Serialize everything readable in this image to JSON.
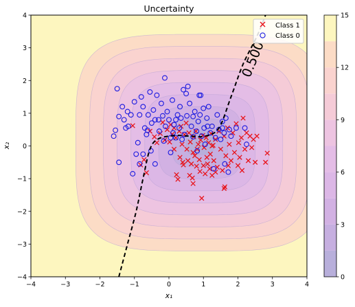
{
  "chart_data": {
    "type": "contour",
    "title": "Uncertainty",
    "xlabel": "x₁",
    "ylabel": "x₂",
    "xlim": [
      -4,
      4
    ],
    "ylim": [
      -4,
      4
    ],
    "xticks": [
      "−4",
      "−3",
      "−2",
      "−1",
      "0",
      "1",
      "2",
      "3",
      "4"
    ],
    "yticks": [
      "−4",
      "−3",
      "−2",
      "−1",
      "0",
      "1",
      "2",
      "3",
      "4"
    ],
    "contour_field": {
      "center": [
        0.9,
        0.1
      ],
      "levels": [
        0,
        1.5,
        3,
        4.5,
        6,
        7.5,
        9,
        10.5,
        12,
        13.5,
        15
      ],
      "colors": [
        "#b8afdb",
        "#c6afe0",
        "#d2b1e3",
        "#dcb7e6",
        "#e4bde6",
        "#edc4e1",
        "#f5cbd7",
        "#fad3cf",
        "#fcdcc6",
        "#fdf6bf"
      ]
    },
    "colorbar": {
      "ticks": [
        "0",
        "3",
        "6",
        "9",
        "12",
        "15"
      ],
      "range": [
        0,
        15
      ]
    },
    "decision_boundary": {
      "label": "0.500",
      "points": [
        [
          -1.45,
          -4.0
        ],
        [
          -1.2,
          -3.0
        ],
        [
          -0.95,
          -2.0
        ],
        [
          -0.75,
          -1.0
        ],
        [
          -0.55,
          -0.1
        ],
        [
          -0.3,
          0.22
        ],
        [
          0.2,
          0.32
        ],
        [
          0.6,
          0.3
        ],
        [
          1.05,
          0.3
        ],
        [
          1.45,
          0.55
        ],
        [
          1.8,
          1.5
        ],
        [
          2.15,
          2.5
        ],
        [
          2.55,
          3.35
        ],
        [
          2.8,
          4.0
        ]
      ]
    },
    "legend": {
      "position": "top-right",
      "entries": [
        "Class 1",
        "Class 0"
      ]
    },
    "series": [
      {
        "name": "Class 1",
        "marker": "x",
        "color": "#e8131a",
        "points": [
          [
            -1.05,
            0.62
          ],
          [
            -0.82,
            -0.58
          ],
          [
            -0.72,
            -0.42
          ],
          [
            -0.65,
            -0.82
          ],
          [
            -0.55,
            0.45
          ],
          [
            -0.42,
            0.28
          ],
          [
            -0.35,
            0.1
          ],
          [
            -0.25,
            0.38
          ],
          [
            -0.12,
            0.18
          ],
          [
            -0.05,
            0.5
          ],
          [
            0.02,
            0.12
          ],
          [
            0.05,
            0.65
          ],
          [
            0.1,
            0.36
          ],
          [
            0.15,
            -0.1
          ],
          [
            0.2,
            0.25
          ],
          [
            0.22,
            -0.88
          ],
          [
            0.26,
            -1.02
          ],
          [
            0.3,
            0.45
          ],
          [
            0.32,
            -0.35
          ],
          [
            0.35,
            0.6
          ],
          [
            0.38,
            0.05
          ],
          [
            0.42,
            -0.58
          ],
          [
            0.45,
            0.35
          ],
          [
            0.5,
            0.7
          ],
          [
            0.52,
            -0.1
          ],
          [
            0.55,
            -0.45
          ],
          [
            0.58,
            0.4
          ],
          [
            0.6,
            -0.9
          ],
          [
            0.62,
            0.12
          ],
          [
            0.65,
            -0.55
          ],
          [
            0.68,
            -0.98
          ],
          [
            0.7,
            -1.15
          ],
          [
            0.72,
            0.28
          ],
          [
            0.75,
            -0.3
          ],
          [
            0.78,
            0.45
          ],
          [
            0.8,
            -0.62
          ],
          [
            0.82,
            -0.1
          ],
          [
            0.85,
            0.05
          ],
          [
            0.88,
            -0.42
          ],
          [
            0.9,
            -0.78
          ],
          [
            0.92,
            0.18
          ],
          [
            0.95,
            -1.6
          ],
          [
            0.98,
            0.32
          ],
          [
            1.0,
            -0.6
          ],
          [
            1.02,
            -0.05
          ],
          [
            1.05,
            -0.85
          ],
          [
            1.08,
            0.25
          ],
          [
            1.1,
            -0.35
          ],
          [
            1.12,
            -0.55
          ],
          [
            1.15,
            0.1
          ],
          [
            1.18,
            -0.7
          ],
          [
            1.2,
            -0.25
          ],
          [
            1.22,
            0.38
          ],
          [
            1.25,
            -0.9
          ],
          [
            1.28,
            0.02
          ],
          [
            1.3,
            -0.45
          ],
          [
            1.35,
            0.2
          ],
          [
            1.4,
            -0.65
          ],
          [
            1.45,
            0.45
          ],
          [
            1.5,
            -0.1
          ],
          [
            1.55,
            -0.75
          ],
          [
            1.6,
            0.3
          ],
          [
            1.62,
            -1.25
          ],
          [
            1.65,
            -0.3
          ],
          [
            1.7,
            0.55
          ],
          [
            1.72,
            -0.6
          ],
          [
            1.75,
            0.05
          ],
          [
            1.8,
            -0.45
          ],
          [
            1.85,
            0.4
          ],
          [
            1.9,
            -0.2
          ],
          [
            1.95,
            0.68
          ],
          [
            2.0,
            -0.6
          ],
          [
            2.02,
            0.1
          ],
          [
            2.05,
            -0.35
          ],
          [
            2.1,
            0.25
          ],
          [
            2.12,
            -0.75
          ],
          [
            2.15,
            0.85
          ],
          [
            2.2,
            -0.1
          ],
          [
            2.25,
            0.4
          ],
          [
            2.3,
            -0.45
          ],
          [
            2.35,
            0.3
          ],
          [
            2.4,
            -0.05
          ],
          [
            2.45,
            0.2
          ],
          [
            2.5,
            -0.5
          ],
          [
            2.55,
            0.3
          ],
          [
            2.8,
            -0.5
          ],
          [
            2.85,
            -0.22
          ],
          [
            -0.18,
            0.72
          ],
          [
            0.4,
            -0.5
          ],
          [
            1.6,
            -1.3
          ],
          [
            1.25,
            0.0
          ],
          [
            0.15,
            0.55
          ],
          [
            0.7,
            -0.2
          ],
          [
            1.35,
            -0.8
          ]
        ]
      },
      {
        "name": "Class 0",
        "marker": "o",
        "color": "#1a1ae0",
        "points": [
          [
            -1.5,
            1.75
          ],
          [
            -1.45,
            0.9
          ],
          [
            -1.55,
            0.48
          ],
          [
            -1.6,
            0.3
          ],
          [
            -1.45,
            -0.5
          ],
          [
            -1.35,
            1.2
          ],
          [
            -1.3,
            0.8
          ],
          [
            -1.25,
            0.55
          ],
          [
            -1.2,
            1.05
          ],
          [
            -1.1,
            0.95
          ],
          [
            -1.05,
            -0.85
          ],
          [
            -1.0,
            1.35
          ],
          [
            -0.95,
            -0.25
          ],
          [
            -0.9,
            0.1
          ],
          [
            -0.85,
            0.95
          ],
          [
            -0.8,
            1.5
          ],
          [
            -0.75,
            1.2
          ],
          [
            -0.7,
            0.55
          ],
          [
            -0.65,
            0.35
          ],
          [
            -0.6,
            0.95
          ],
          [
            -0.55,
            1.65
          ],
          [
            -0.52,
            -0.15
          ],
          [
            -0.5,
            0.7
          ],
          [
            -0.45,
            1.1
          ],
          [
            -0.4,
            -0.55
          ],
          [
            -0.35,
            1.55
          ],
          [
            -0.3,
            0.8
          ],
          [
            -0.28,
            0.45
          ],
          [
            -0.22,
            1.3
          ],
          [
            -0.18,
            0.92
          ],
          [
            -0.15,
            0.15
          ],
          [
            -0.12,
            2.08
          ],
          [
            -0.1,
            0.6
          ],
          [
            -0.05,
            1.05
          ],
          [
            0.0,
            0.8
          ],
          [
            0.05,
            -0.2
          ],
          [
            0.1,
            1.4
          ],
          [
            0.12,
            0.4
          ],
          [
            0.15,
            0.65
          ],
          [
            0.2,
            0.25
          ],
          [
            0.25,
            0.95
          ],
          [
            0.3,
            0.55
          ],
          [
            0.32,
            1.2
          ],
          [
            0.35,
            0.85
          ],
          [
            0.38,
            0.2
          ],
          [
            0.42,
            1.72
          ],
          [
            0.45,
            0.35
          ],
          [
            0.5,
            1.6
          ],
          [
            0.52,
            0.92
          ],
          [
            0.55,
            1.82
          ],
          [
            0.6,
            1.3
          ],
          [
            0.65,
            0.6
          ],
          [
            0.7,
            0.9
          ],
          [
            0.75,
            1.05
          ],
          [
            0.8,
            0.45
          ],
          [
            0.82,
            -0.15
          ],
          [
            0.85,
            0.75
          ],
          [
            0.9,
            0.95
          ],
          [
            0.92,
            1.55
          ],
          [
            0.95,
            0.3
          ],
          [
            1.0,
            1.15
          ],
          [
            1.02,
            0.55
          ],
          [
            1.05,
            0.05
          ],
          [
            1.1,
            0.85
          ],
          [
            1.15,
            1.2
          ],
          [
            1.2,
            0.4
          ],
          [
            1.25,
            0.6
          ],
          [
            1.3,
            -0.7
          ],
          [
            1.35,
            0.25
          ],
          [
            1.4,
            0.95
          ],
          [
            1.45,
            0.5
          ],
          [
            1.5,
            0.2
          ],
          [
            1.55,
            0.75
          ],
          [
            1.6,
            0.4
          ],
          [
            1.62,
            -0.55
          ],
          [
            1.65,
            0.85
          ],
          [
            1.72,
            -0.8
          ],
          [
            1.8,
            0.3
          ],
          [
            1.95,
            0.55
          ],
          [
            2.2,
            0.55
          ],
          [
            2.25,
            0.05
          ],
          [
            -0.62,
            0.48
          ],
          [
            0.05,
            0.25
          ],
          [
            0.7,
            0.28
          ],
          [
            1.12,
            0.6
          ],
          [
            1.55,
            0.55
          ],
          [
            -0.85,
            -0.55
          ],
          [
            0.88,
            1.55
          ],
          [
            -0.4,
            0.8
          ],
          [
            1.75,
            0.5
          ],
          [
            -1.18,
            0.6
          ],
          [
            0.2,
            0.8
          ],
          [
            -0.75,
            -0.25
          ]
        ]
      }
    ]
  }
}
